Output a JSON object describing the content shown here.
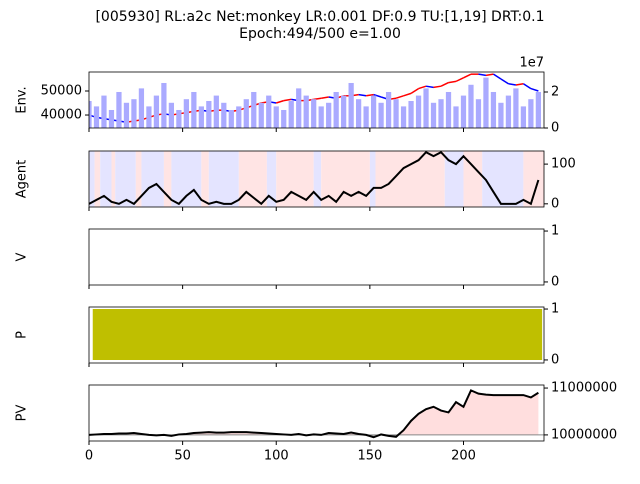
{
  "title": [
    "[005930] RL:a2c Net:monkey LR:0.001 DF:0.9 TU:[1,19] DRT:0.1",
    "Epoch:494/500 e=1.00"
  ],
  "chart_data": [
    {
      "type": "line",
      "ylabel": "Env.",
      "ytick_side": "left",
      "x": [
        0,
        4,
        8,
        12,
        16,
        20,
        24,
        28,
        32,
        36,
        40,
        44,
        48,
        52,
        56,
        60,
        64,
        68,
        72,
        76,
        80,
        84,
        88,
        92,
        96,
        100,
        104,
        108,
        112,
        116,
        120,
        124,
        128,
        132,
        136,
        140,
        144,
        148,
        152,
        156,
        160,
        164,
        168,
        172,
        176,
        180,
        184,
        188,
        192,
        196,
        200,
        204,
        208,
        212,
        216,
        220,
        224,
        228,
        232,
        236,
        240
      ],
      "series": [
        {
          "values": [
            40000,
            39000,
            38500,
            38000,
            37500,
            37000,
            37500,
            38000,
            39000,
            40000,
            40500,
            40000,
            40500,
            41000,
            41500,
            42000,
            41500,
            42000,
            42000,
            41500,
            42000,
            43000,
            44000,
            45000,
            45500,
            45000,
            46000,
            46500,
            46000,
            46000,
            46500,
            47000,
            47500,
            47000,
            48000,
            48000,
            48500,
            48000,
            48500,
            47500,
            46500,
            47000,
            48000,
            49000,
            51000,
            52000,
            51500,
            52000,
            53500,
            54000,
            55500,
            57000,
            57000,
            56500,
            57000,
            55000,
            53000,
            52500,
            53000,
            51000,
            50000
          ],
          "up_color": "#ff0000",
          "down_color": "#0000ff"
        },
        {
          "values": [
            15000000,
            12000000,
            18000000,
            10000000,
            20000000,
            14000000,
            16000000,
            22000000,
            12000000,
            18000000,
            25000000,
            14000000,
            10000000,
            16000000,
            20000000,
            12000000,
            15000000,
            18000000,
            14000000,
            10000000,
            12000000,
            16000000,
            20000000,
            14000000,
            18000000,
            12000000,
            10000000,
            15000000,
            22000000,
            18000000,
            16000000,
            12000000,
            14000000,
            20000000,
            18000000,
            25000000,
            16000000,
            12000000,
            18000000,
            14000000,
            20000000,
            16000000,
            12000000,
            15000000,
            18000000,
            22000000,
            14000000,
            16000000,
            20000000,
            12000000,
            18000000,
            24000000,
            16000000,
            28000000,
            20000000,
            14000000,
            18000000,
            22000000,
            12000000,
            16000000,
            20000000
          ],
          "axis": "y2",
          "style": "bar",
          "color": "#aaaaff"
        }
      ],
      "xlim": [
        0,
        243
      ],
      "xticks": [
        0,
        50,
        100,
        150,
        200
      ],
      "ylim": [
        34600,
        57900
      ],
      "yticks": [
        40000,
        50000
      ],
      "y2lim": [
        0,
        31100000
      ],
      "y2ticks": [
        0,
        {
          "value": 20000000,
          "label": "2"
        }
      ],
      "y2_offset": "1e7"
    },
    {
      "type": "line",
      "ylabel": "Agent",
      "ytick_side": "right",
      "x": [
        0,
        4,
        8,
        12,
        16,
        20,
        24,
        28,
        32,
        36,
        40,
        44,
        48,
        52,
        56,
        60,
        64,
        68,
        72,
        76,
        80,
        84,
        88,
        92,
        96,
        100,
        104,
        108,
        112,
        116,
        120,
        124,
        128,
        132,
        136,
        140,
        144,
        148,
        152,
        156,
        160,
        164,
        168,
        172,
        176,
        180,
        184,
        188,
        192,
        196,
        200,
        204,
        208,
        212,
        216,
        220,
        224,
        228,
        232,
        236,
        240
      ],
      "series": [
        {
          "values": [
            0,
            10,
            20,
            5,
            0,
            10,
            0,
            20,
            40,
            50,
            30,
            10,
            0,
            20,
            35,
            10,
            0,
            5,
            0,
            0,
            10,
            30,
            15,
            0,
            20,
            5,
            10,
            30,
            20,
            10,
            30,
            10,
            20,
            5,
            30,
            20,
            30,
            20,
            40,
            40,
            50,
            70,
            90,
            100,
            110,
            130,
            120,
            130,
            110,
            100,
            120,
            100,
            80,
            60,
            30,
            0,
            0,
            0,
            10,
            0,
            60
          ],
          "color": "#000000"
        }
      ],
      "background_spans": [
        {
          "x0": 0,
          "x1": 3,
          "color": "#e4e4ff"
        },
        {
          "x0": 3,
          "x1": 6,
          "color": "#ffe4e4"
        },
        {
          "x0": 6,
          "x1": 12,
          "color": "#e4e4ff"
        },
        {
          "x0": 12,
          "x1": 14,
          "color": "#ffe4e4"
        },
        {
          "x0": 14,
          "x1": 25,
          "color": "#e4e4ff"
        },
        {
          "x0": 25,
          "x1": 28,
          "color": "#ffe4e4"
        },
        {
          "x0": 28,
          "x1": 40,
          "color": "#e4e4ff"
        },
        {
          "x0": 40,
          "x1": 44,
          "color": "#ffe4e4"
        },
        {
          "x0": 44,
          "x1": 60,
          "color": "#e4e4ff"
        },
        {
          "x0": 60,
          "x1": 64,
          "color": "#ffe4e4"
        },
        {
          "x0": 64,
          "x1": 80,
          "color": "#e4e4ff"
        },
        {
          "x0": 80,
          "x1": 95,
          "color": "#ffe4e4"
        },
        {
          "x0": 95,
          "x1": 100,
          "color": "#e4e4ff"
        },
        {
          "x0": 100,
          "x1": 120,
          "color": "#ffe4e4"
        },
        {
          "x0": 120,
          "x1": 124,
          "color": "#e4e4ff"
        },
        {
          "x0": 124,
          "x1": 150,
          "color": "#ffe4e4"
        },
        {
          "x0": 150,
          "x1": 153,
          "color": "#e4e4ff"
        },
        {
          "x0": 153,
          "x1": 190,
          "color": "#ffe4e4"
        },
        {
          "x0": 190,
          "x1": 200,
          "color": "#e4e4ff"
        },
        {
          "x0": 200,
          "x1": 210,
          "color": "#ffe4e4"
        },
        {
          "x0": 210,
          "x1": 232,
          "color": "#e4e4ff"
        },
        {
          "x0": 232,
          "x1": 243,
          "color": "#ffe4e4"
        }
      ],
      "xlim": [
        0,
        243
      ],
      "xticks": [
        0,
        50,
        100,
        150,
        200
      ],
      "ylim": [
        -8,
        133
      ],
      "yticks": [
        0,
        100
      ]
    },
    {
      "type": "line",
      "ylabel": "V",
      "ytick_side": "right",
      "series": [],
      "xlim": [
        0,
        243
      ],
      "xticks": [
        0,
        50,
        100,
        150,
        200
      ],
      "ylim": [
        -0.06,
        1.04
      ],
      "yticks": [
        0,
        1
      ]
    },
    {
      "type": "area",
      "ylabel": "P",
      "ytick_side": "right",
      "x": [
        2,
        242
      ],
      "series": [
        {
          "values": [
            1,
            1
          ],
          "color": "#bfbf00"
        }
      ],
      "xlim": [
        0,
        243
      ],
      "xticks": [
        0,
        50,
        100,
        150,
        200
      ],
      "ylim": [
        -0.06,
        1.04
      ],
      "yticks": [
        0,
        1
      ]
    },
    {
      "type": "line",
      "ylabel": "PV",
      "ytick_side": "right",
      "xtick_labels": true,
      "x": [
        0,
        4,
        8,
        12,
        16,
        20,
        24,
        28,
        32,
        36,
        40,
        44,
        48,
        52,
        56,
        60,
        64,
        68,
        72,
        76,
        80,
        84,
        88,
        92,
        96,
        100,
        104,
        108,
        112,
        116,
        120,
        124,
        128,
        132,
        136,
        140,
        144,
        148,
        152,
        156,
        160,
        164,
        168,
        172,
        176,
        180,
        184,
        188,
        192,
        196,
        200,
        204,
        208,
        212,
        216,
        220,
        224,
        228,
        232,
        236,
        240
      ],
      "series": [
        {
          "values": [
            10000000,
            10010000,
            10020000,
            10020000,
            10030000,
            10030000,
            10040000,
            10020000,
            10000000,
            9990000,
            10000000,
            9980000,
            10010000,
            10020000,
            10040000,
            10050000,
            10060000,
            10050000,
            10050000,
            10060000,
            10060000,
            10060000,
            10050000,
            10040000,
            10030000,
            10020000,
            10010000,
            10000000,
            10020000,
            9990000,
            10010000,
            10000000,
            10040000,
            10030000,
            10020000,
            10050000,
            10020000,
            10000000,
            9950000,
            10010000,
            9980000,
            9960000,
            10100000,
            10300000,
            10450000,
            10550000,
            10600000,
            10520000,
            10480000,
            10700000,
            10600000,
            10950000,
            10880000,
            10860000,
            10850000,
            10850000,
            10850000,
            10850000,
            10850000,
            10800000,
            10900000
          ],
          "color": "#000000",
          "fill_above": "#ffdede",
          "fill_below": "#aaaaaa"
        }
      ],
      "baseline": 10000000,
      "baseline_color": "#888888",
      "xlim": [
        0,
        243
      ],
      "xticks": [
        0,
        50,
        100,
        150,
        200
      ],
      "ylim": [
        9870000,
        11065000
      ],
      "yticks": [
        10000000,
        11000000
      ]
    }
  ]
}
